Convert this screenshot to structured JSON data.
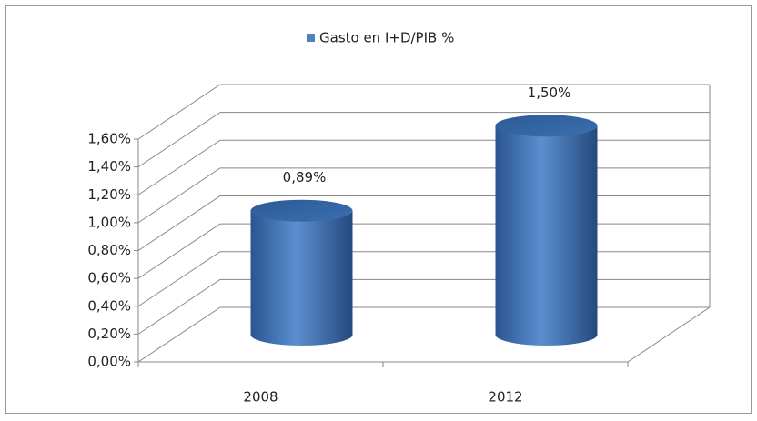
{
  "chart_data": {
    "type": "bar3d",
    "categories": [
      "2008",
      "2012"
    ],
    "series": [
      {
        "name": "Gasto en I+D/PIB %",
        "color": "#4f81bd",
        "values": [
          0.89,
          1.5
        ],
        "value_labels": [
          "0,89%",
          "1,50%"
        ]
      }
    ],
    "ylim": [
      0,
      1.6
    ],
    "yticks": [
      {
        "value": 0,
        "label": "0,00%"
      },
      {
        "value": 0.2,
        "label": "0,20%"
      },
      {
        "value": 0.4,
        "label": "0,40%"
      },
      {
        "value": 0.6,
        "label": "0,60%"
      },
      {
        "value": 0.8,
        "label": "0,80%"
      },
      {
        "value": 1.0,
        "label": "1,00%"
      },
      {
        "value": 1.2,
        "label": "1,20%"
      },
      {
        "value": 1.4,
        "label": "1,40%"
      },
      {
        "value": 1.6,
        "label": "1,60%"
      }
    ],
    "grid": true,
    "legend": "top"
  }
}
